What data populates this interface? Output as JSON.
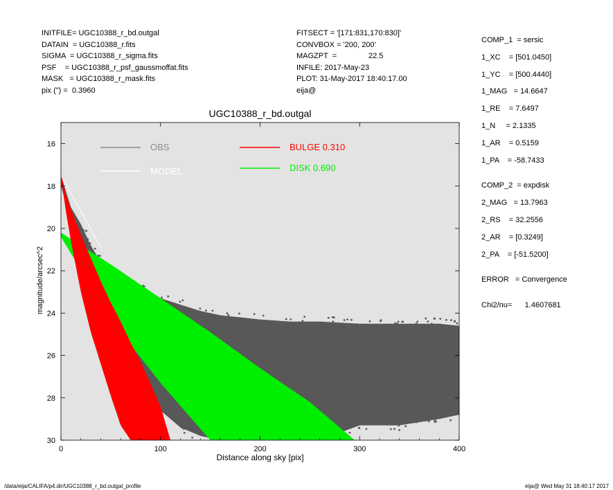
{
  "header": {
    "left": [
      "INITFILE= UGC10388_r_bd.outgal",
      "DATAIN  = UGC10388_r.fits",
      "SIGMA  = UGC10388_r_sigma.fits",
      "PSF    = UGC10388_r_psf_gaussmoffat.fits",
      "MASK   = UGC10388_r_mask.fits",
      "pix (\") =  0.3960"
    ],
    "middle": [
      "FITSECT = '[171:831,170:830]'",
      "CONVBOX = '200, 200'",
      "MAGZPT  =               22.5",
      "INFILE: 2017-May-23",
      "PLOT: 31-May-2017 18:40:17.00",
      "eija@"
    ],
    "right": [
      "COMP_1  = sersic",
      "1_XC    = [501.0450]",
      "1_YC    = [500.4440]",
      "1_MAG   = 14.6647",
      "1_RE    = 7.6497",
      "1_N     = 2.1335",
      "1_AR    = 0.5159",
      "1_PA    = -58.7433",
      "",
      "COMP_2  = expdisk",
      "2_MAG   = 13.7963",
      "2_RS    = 32.2556",
      "2_AR    = [0.3249]",
      "2_PA    = [-51.5200]",
      "",
      "ERROR   = Convergence",
      "",
      "Chi2/nu=      1.4607681"
    ]
  },
  "footer": {
    "path": "/data/eija/CALIFA/p4.dir/UGC10388_r_bd.outgal_profile",
    "stamp": "eija@  Wed May 31 18:40:17 2017"
  },
  "colors": {
    "panel_bg": "#e3e3e3",
    "obs": "#585858",
    "obs_legend": "#8a8a8a",
    "model": "#ffffff",
    "bulge": "#ff0000",
    "disk": "#00ee00"
  },
  "chart_data": {
    "type": "scatter",
    "title": "UGC10388_r_bd.outgal",
    "xlabel": "Distance along sky [pix]",
    "ylabel": "magnitude/arcsec^2",
    "xlim": [
      0,
      400
    ],
    "ylim": [
      30,
      15
    ],
    "y_inverted": true,
    "xticks": [
      0,
      100,
      200,
      300,
      400
    ],
    "yticks": [
      16,
      18,
      20,
      22,
      24,
      26,
      28,
      30
    ],
    "grid": false,
    "legend": [
      {
        "name": "OBS",
        "color": "#8a8a8a"
      },
      {
        "name": "MODEL",
        "color": "#ffffff"
      },
      {
        "name": "BULGE",
        "value": "0.310",
        "color": "#ff0000"
      },
      {
        "name": "DISK",
        "value": "0.690",
        "color": "#00ee00"
      }
    ],
    "series": [
      {
        "name": "OBS",
        "x": [
          0,
          10,
          20,
          30,
          40,
          60,
          80,
          100,
          120,
          140,
          160,
          180,
          200,
          230,
          260,
          300,
          340,
          380,
          400
        ],
        "y_min": [
          17.5,
          19.0,
          19.8,
          20.8,
          21.6,
          22.4,
          22.9,
          23.3,
          23.6,
          23.9,
          24.1,
          24.2,
          24.3,
          24.4,
          24.4,
          24.5,
          24.5,
          24.5,
          24.6
        ],
        "y_max": [
          18.0,
          19.6,
          20.6,
          21.8,
          23.6,
          26.5,
          28.0,
          28.6,
          29.4,
          29.8,
          30.0,
          30.0,
          30.0,
          30.0,
          30.0,
          29.3,
          29.3,
          29.0,
          28.8
        ]
      },
      {
        "name": "BULGE",
        "x": [
          0,
          5,
          10,
          20,
          30,
          40,
          50,
          60,
          70,
          80,
          100,
          110
        ],
        "y_min": [
          17.4,
          18.4,
          19.1,
          20.3,
          21.4,
          22.5,
          23.5,
          24.4,
          25.4,
          26.3,
          28.4,
          30.0
        ],
        "y_max": [
          17.6,
          19.2,
          20.6,
          23.0,
          24.9,
          26.4,
          27.9,
          29.3,
          30.0,
          30.0,
          30.0,
          30.0
        ],
        "x_end_inner": 55,
        "x_end_outer": 108
      },
      {
        "name": "DISK",
        "x": [
          0,
          50,
          100,
          150,
          200,
          250,
          295
        ],
        "y_min": [
          20.2,
          21.7,
          23.3,
          24.9,
          26.6,
          28.2,
          30.0
        ],
        "y_max": [
          20.4,
          24.3,
          27.3,
          30.0,
          30.0,
          30.0,
          30.0
        ],
        "x_end_inner": 125,
        "x_end_outer": 295
      }
    ]
  }
}
